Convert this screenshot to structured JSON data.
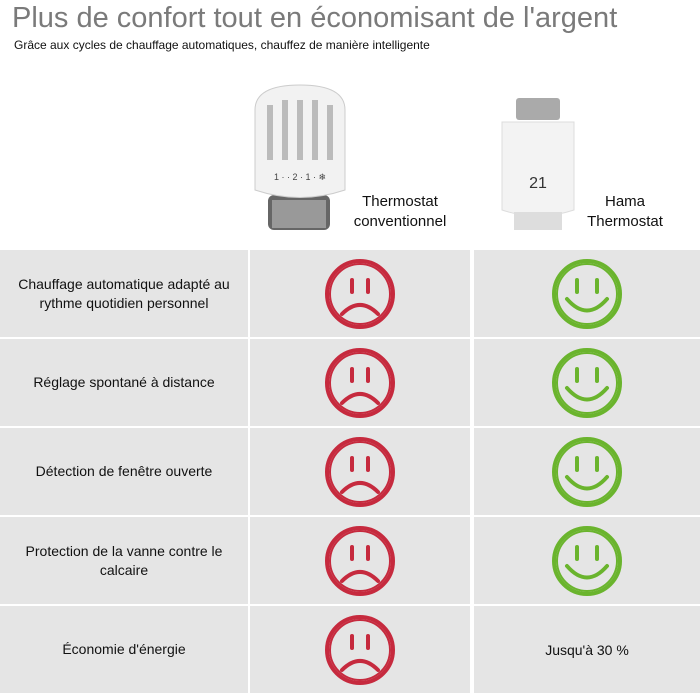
{
  "header": {
    "title": "Plus de confort tout en économisant de l'argent",
    "subtitle": "Grâce aux cycles de chauffage automatiques, chauffez de manière intelligente"
  },
  "products": [
    "Thermostat conventionnel",
    "Hama Thermostat"
  ],
  "rows": [
    {
      "feature": "Chauffage automatique adapté au rythme quotidien personnel"
    },
    {
      "feature": "Réglage spontané à distance"
    },
    {
      "feature": "Détection de fenêtre ouverte"
    },
    {
      "feature": "Protection de la vanne contre le calcaire"
    },
    {
      "feature": "Économie d'énergie",
      "hama_value": "Jusqu'à 30 %"
    }
  ]
}
